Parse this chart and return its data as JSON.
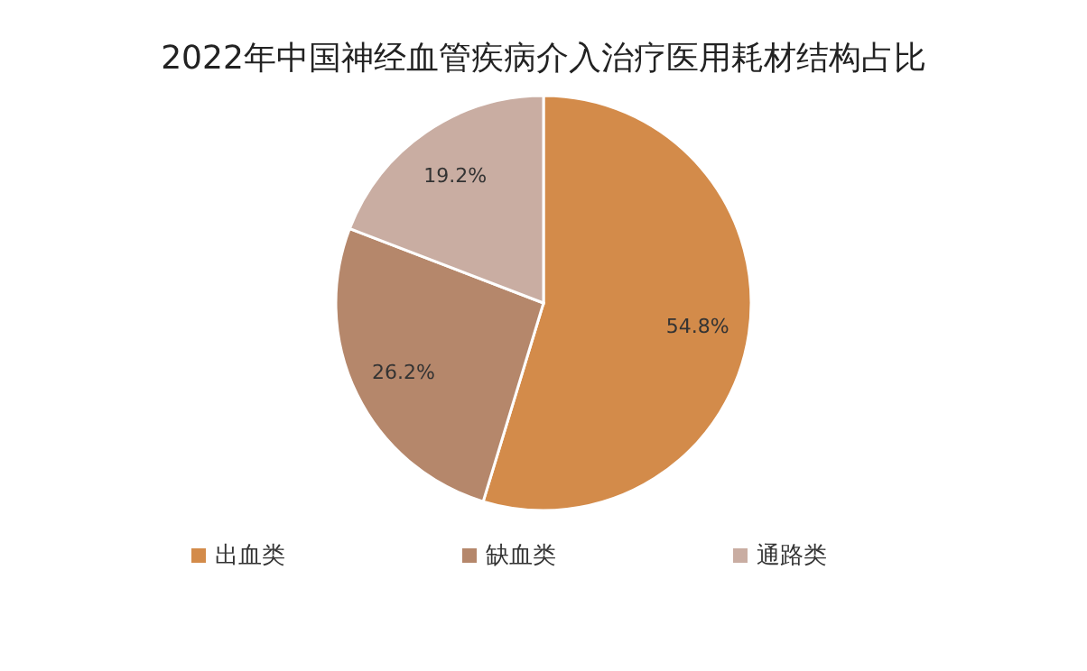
{
  "chart_data": {
    "type": "pie",
    "title": "2022年中国神经血管疾病介入治疗医用耗材结构占比",
    "categories": [
      "出血类",
      "缺血类",
      "通路类"
    ],
    "values": [
      54.8,
      26.2,
      19.2
    ],
    "value_labels": [
      "54.8%",
      "26.2%",
      "19.2%"
    ],
    "colors": [
      "#d38b4a",
      "#b5876b",
      "#c9ada2"
    ],
    "legend": "bottom"
  }
}
